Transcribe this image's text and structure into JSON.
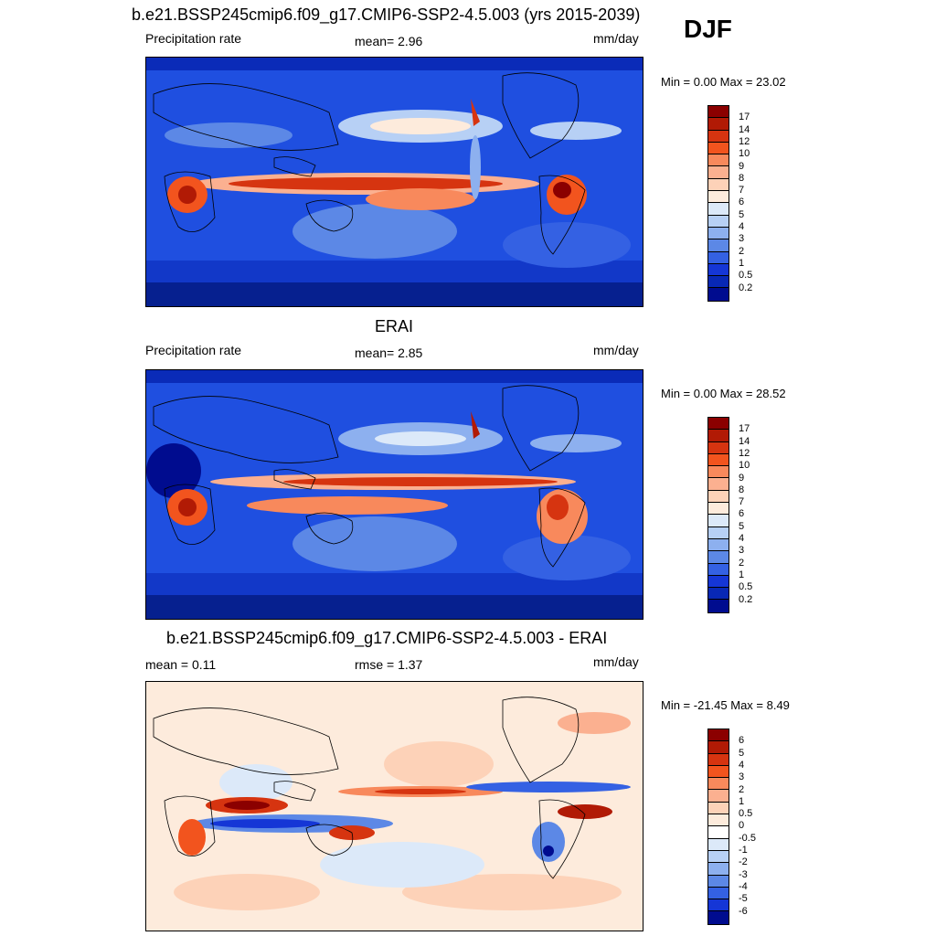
{
  "season": "DJF",
  "panels": [
    {
      "title": "b.e21.BSSP245cmip6.f09_g17.CMIP6-SSP2-4.5.003 (yrs 2015-2039)",
      "left_label": "Precipitation rate",
      "center_label": "mean=   2.96",
      "units": "mm/day",
      "minmax": "Min =   0.00 Max =  23.02",
      "colorbar": {
        "labels": [
          "17",
          "14",
          "12",
          "10",
          "9",
          "8",
          "7",
          "6",
          "5",
          "4",
          "3",
          "2",
          "1",
          "0.5",
          "0.2"
        ],
        "colors": [
          "#8b0000",
          "#b11a05",
          "#d63410",
          "#f2541e",
          "#f8895c",
          "#fbb090",
          "#fdd2b8",
          "#fdebdc",
          "#dce9f9",
          "#b7d0f5",
          "#8db0ef",
          "#5c88e6",
          "#3461e3",
          "#1536d6",
          "#0828b5",
          "#000c8f"
        ]
      }
    },
    {
      "title": "ERAI",
      "left_label": "Precipitation rate",
      "center_label": "mean=   2.85",
      "units": "mm/day",
      "minmax": "Min =   0.00 Max =  28.52",
      "colorbar": {
        "labels": [
          "17",
          "14",
          "12",
          "10",
          "9",
          "8",
          "7",
          "6",
          "5",
          "4",
          "3",
          "2",
          "1",
          "0.5",
          "0.2"
        ],
        "colors": [
          "#8b0000",
          "#b11a05",
          "#d63410",
          "#f2541e",
          "#f8895c",
          "#fbb090",
          "#fdd2b8",
          "#fdebdc",
          "#dce9f9",
          "#b7d0f5",
          "#8db0ef",
          "#5c88e6",
          "#3461e3",
          "#1536d6",
          "#0828b5",
          "#000c8f"
        ]
      }
    },
    {
      "title": "b.e21.BSSP245cmip6.f09_g17.CMIP6-SSP2-4.5.003 - ERAI",
      "left_label": "mean =   0.11",
      "center_label": "rmse =   1.37",
      "units": "mm/day",
      "minmax": "Min = -21.45 Max =   8.49",
      "colorbar": {
        "labels": [
          "6",
          "5",
          "4",
          "3",
          "2",
          "1",
          "0.5",
          "0",
          "-0.5",
          "-1",
          "-2",
          "-3",
          "-4",
          "-5",
          "-6"
        ],
        "colors": [
          "#8b0000",
          "#b11a05",
          "#d63410",
          "#f2541e",
          "#f8895c",
          "#fbb090",
          "#fdd2b8",
          "#fdebdc",
          "#ffffff",
          "#dce9f9",
          "#b7d0f5",
          "#8db0ef",
          "#5c88e6",
          "#3461e3",
          "#1536d6",
          "#000c8f"
        ]
      }
    }
  ]
}
